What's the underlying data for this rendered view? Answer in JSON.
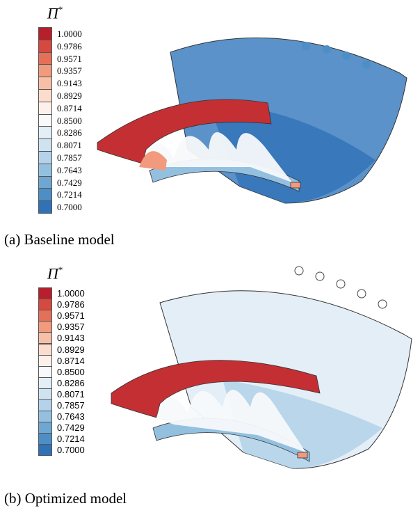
{
  "panels": [
    {
      "legend": {
        "symbol": "Π",
        "sup": "*",
        "labels": [
          "1.0000",
          "0.9786",
          "0.9571",
          "0.9357",
          "0.9143",
          "0.8929",
          "0.8714",
          "0.8500",
          "0.8286",
          "0.8071",
          "0.7857",
          "0.7643",
          "0.7429",
          "0.7214",
          "0.7000"
        ]
      },
      "caption": "(a) Baseline model"
    },
    {
      "legend": {
        "symbol": "Π",
        "sup": "*",
        "labels": [
          "1.0000",
          "0.9786",
          "0.9571",
          "0.9357",
          "0.9143",
          "0.8929",
          "0.8714",
          "0.8500",
          "0.8286",
          "0.8071",
          "0.7857",
          "0.7643",
          "0.7429",
          "0.7214",
          "0.7000"
        ]
      },
      "caption": "(b) Optimized model"
    }
  ],
  "colors": [
    "#b81f2d",
    "#d6493f",
    "#e4705a",
    "#f19a7e",
    "#f7bfa6",
    "#fbdccd",
    "#fdf0ea",
    "#f7f9fb",
    "#e3eef6",
    "#cfe2f0",
    "#b4d3ea",
    "#94c0e0",
    "#6fa7d3",
    "#4d8ec6",
    "#2f72b8"
  ]
}
